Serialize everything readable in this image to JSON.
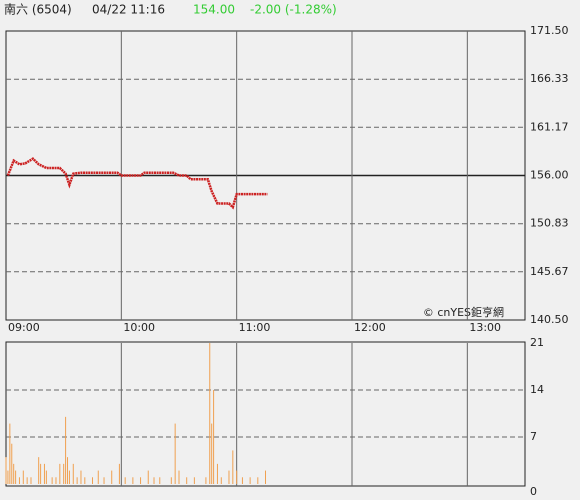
{
  "header": {
    "name": "南六 (6504)",
    "time": "04/22 11:16",
    "price": "154.00",
    "change": "-2.00 (-1.28%)",
    "price_color": "#33cc33"
  },
  "watermark": "© cnYES鉅亨網",
  "chart_data": [
    {
      "type": "line",
      "color": "#cc2222",
      "prev_close": 156,
      "x": [
        "09:01",
        "09:04",
        "09:07",
        "09:10",
        "09:14",
        "09:17",
        "09:21",
        "09:28",
        "09:31",
        "09:33",
        "09:35",
        "09:39",
        "09:58",
        "10:00",
        "10:10",
        "10:12",
        "10:27",
        "10:30",
        "10:34",
        "10:36",
        "10:45",
        "10:47",
        "10:50",
        "10:56",
        "10:58",
        "11:00",
        "11:16"
      ],
      "values": [
        156.0,
        157.6,
        157.2,
        157.3,
        157.8,
        157.2,
        156.8,
        156.8,
        156.2,
        155.0,
        156.2,
        156.3,
        156.3,
        156.0,
        156.0,
        156.3,
        156.3,
        156.0,
        156.0,
        155.6,
        155.6,
        154.3,
        153.0,
        153.0,
        152.6,
        154.0,
        154.0
      ],
      "xlim": [
        "09:00",
        "13:30"
      ],
      "xticks": [
        "09:00",
        "10:00",
        "11:00",
        "12:00",
        "13:00"
      ],
      "ylim": [
        140.5,
        171.5
      ],
      "yticks": [
        {
          "value": 140.5,
          "label": "140.50"
        },
        145.67,
        150.83,
        {
          "value": 156,
          "label": "156.00"
        },
        161.17,
        166.33,
        {
          "value": 171.5,
          "label": "171.50"
        }
      ]
    },
    {
      "type": "bar",
      "color": "#f0a050",
      "x": [
        "09:00",
        "09:01",
        "09:02",
        "09:03",
        "09:04",
        "09:05",
        "09:07",
        "09:09",
        "09:11",
        "09:13",
        "09:17",
        "09:18",
        "09:20",
        "09:21",
        "09:24",
        "09:26",
        "09:28",
        "09:30",
        "09:31",
        "09:32",
        "09:33",
        "09:35",
        "09:37",
        "09:39",
        "09:41",
        "09:45",
        "09:48",
        "09:51",
        "09:55",
        "09:59",
        "10:02",
        "10:06",
        "10:10",
        "10:14",
        "10:17",
        "10:20",
        "10:26",
        "10:28",
        "10:30",
        "10:34",
        "10:38",
        "10:44",
        "10:46",
        "10:47",
        "10:48",
        "10:50",
        "10:52",
        "10:56",
        "10:58",
        "11:00",
        "11:03",
        "11:07",
        "11:11",
        "11:15"
      ],
      "values": [
        4,
        2,
        9,
        6,
        3,
        2,
        1,
        2,
        1,
        1,
        4,
        3,
        3,
        2,
        1,
        1,
        3,
        3,
        10,
        4,
        2,
        3,
        1,
        2,
        1,
        1,
        2,
        1,
        2,
        3,
        1,
        1,
        1,
        2,
        1,
        1,
        1,
        9,
        2,
        1,
        1,
        1,
        21,
        9,
        14,
        3,
        1,
        2,
        5,
        2,
        1,
        1,
        1,
        2
      ],
      "xlim": [
        "09:00",
        "13:30"
      ],
      "ylim": [
        0,
        21
      ],
      "yticks": [
        0,
        7,
        14,
        21
      ]
    }
  ]
}
